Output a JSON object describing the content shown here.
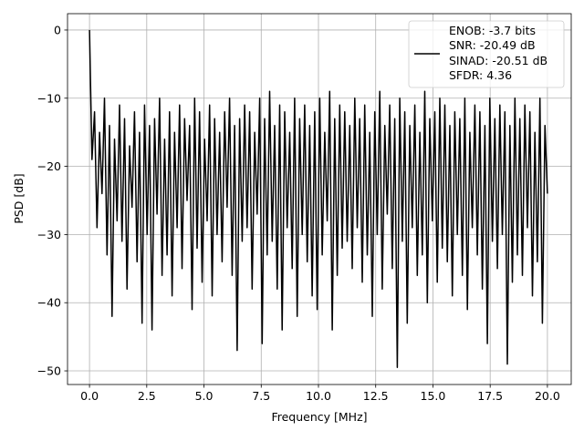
{
  "chart_data": {
    "type": "line",
    "title": "",
    "xlabel": "Frequency [MHz]",
    "ylabel": "PSD [dB]",
    "xlim": [
      -0.96,
      21.04
    ],
    "ylim": [
      -52,
      2.4
    ],
    "xticks": [
      0.0,
      2.5,
      5.0,
      7.5,
      10.0,
      12.5,
      15.0,
      17.5,
      20.0
    ],
    "xtick_labels": [
      "0.0",
      "2.5",
      "5.0",
      "7.5",
      "10.0",
      "12.5",
      "15.0",
      "17.5",
      "20.0"
    ],
    "yticks": [
      0,
      -10,
      -20,
      -30,
      -40,
      -50
    ],
    "ytick_labels": [
      "0",
      "−10",
      "−20",
      "−30",
      "−40",
      "−50"
    ],
    "grid": true,
    "legend_position": "top-right",
    "series": [
      {
        "name": "PSD",
        "color": "#000000",
        "x_start": 0,
        "x_end": 20,
        "values": [
          0,
          -19,
          -12,
          -29,
          -15,
          -24,
          -10,
          -33,
          -14,
          -42,
          -16,
          -28,
          -11,
          -31,
          -13,
          -38,
          -17,
          -26,
          -12,
          -34,
          -15,
          -43,
          -11,
          -30,
          -14,
          -44,
          -13,
          -27,
          -10,
          -36,
          -16,
          -33,
          -12,
          -39,
          -15,
          -29,
          -11,
          -35,
          -13,
          -25,
          -14,
          -41,
          -10,
          -32,
          -12,
          -37,
          -16,
          -28,
          -11,
          -39,
          -13,
          -30,
          -15,
          -34,
          -12,
          -26,
          -10,
          -36,
          -14,
          -47,
          -13,
          -31,
          -11,
          -29,
          -12,
          -38,
          -15,
          -27,
          -10,
          -46,
          -13,
          -33,
          -9,
          -31,
          -14,
          -38,
          -11,
          -44,
          -12,
          -29,
          -15,
          -35,
          -10,
          -42,
          -13,
          -30,
          -11,
          -34,
          -14,
          -39,
          -12,
          -41,
          -10,
          -33,
          -15,
          -28,
          -9,
          -44,
          -13,
          -36,
          -11,
          -32,
          -12,
          -31,
          -14,
          -35,
          -10,
          -29,
          -13,
          -37,
          -11,
          -33,
          -15,
          -42,
          -12,
          -30,
          -9,
          -38,
          -14,
          -27,
          -11,
          -35,
          -13,
          -49.5,
          -10,
          -31,
          -12,
          -43,
          -14,
          -29,
          -11,
          -36,
          -15,
          -33,
          -9,
          -40,
          -13,
          -28,
          -12,
          -37,
          -10,
          -32,
          -11,
          -34,
          -14,
          -39,
          -12,
          -30,
          -13,
          -36,
          -10,
          -41,
          -15,
          -29,
          -11,
          -33,
          -12,
          -38,
          -14,
          -46,
          -10,
          -31,
          -13,
          -35,
          -11,
          -30,
          -12,
          -49,
          -14,
          -37,
          -10,
          -33,
          -13,
          -36,
          -11,
          -29,
          -12,
          -39,
          -15,
          -34,
          -10,
          -43,
          -14,
          -24
        ]
      }
    ],
    "legend": [
      "ENOB: -3.7 bits",
      "SNR: -20.49 dB",
      "SINAD: -20.51 dB",
      "SFDR: 4.36"
    ]
  }
}
